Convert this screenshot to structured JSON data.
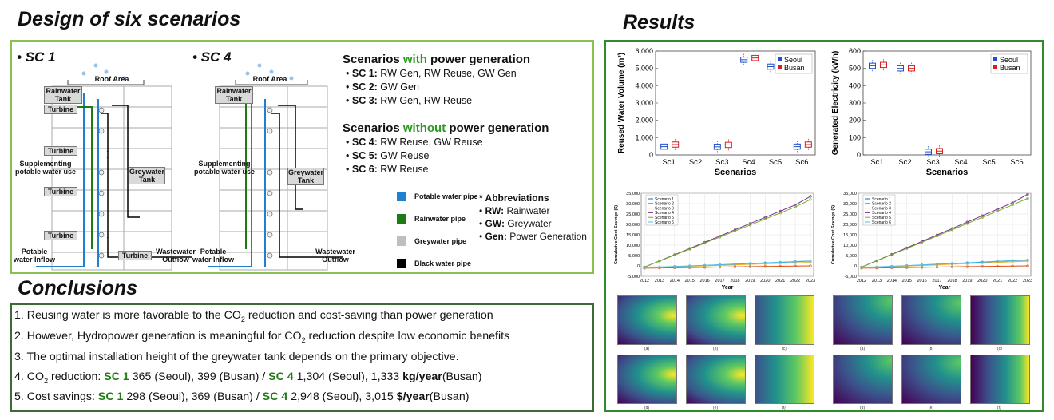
{
  "design": {
    "title": "Design of six scenarios",
    "sc1": {
      "label": "• SC 1",
      "roof": "Roof Area",
      "rain_tank": "Rainwater Tank",
      "turbine": "Turbine",
      "supplementing": "Supplementing potable water use",
      "grey_tank": "Greywater Tank",
      "inflow": "Potable water Inflow",
      "outflow": "Wastewater Outflow"
    },
    "sc4": {
      "label": "• SC 4",
      "roof": "Roof Area",
      "rain_tank": "Rainwater Tank",
      "supplementing": "Supplementing potable water use",
      "grey_tank": "Greywater Tank",
      "inflow": "Potable water Inflow",
      "outflow": "Wastewater Outflow"
    },
    "with_gen": {
      "heading_pre": "Scenarios ",
      "heading_kw": "with",
      "heading_post": " power generation",
      "items": [
        {
          "sc": "SC 1:",
          "text": " RW Gen,  RW Reuse, GW Gen"
        },
        {
          "sc": "SC 2:",
          "text": " GW Gen"
        },
        {
          "sc": "SC 3:",
          "text": " RW Gen,  RW Reuse"
        }
      ]
    },
    "without_gen": {
      "heading_pre": "Scenarios ",
      "heading_kw": "without",
      "heading_post": " power generation",
      "items": [
        {
          "sc": "SC 4:",
          "text": " RW Reuse, GW Reuse"
        },
        {
          "sc": "SC 5:",
          "text": " GW Reuse"
        },
        {
          "sc": "SC 6:",
          "text": " RW Reuse"
        }
      ]
    },
    "pipes": [
      {
        "label": "Potable water pipe",
        "color": "#1f7fd1"
      },
      {
        "label": "Rainwater pipe",
        "color": "#1f7a14"
      },
      {
        "label": "Greywater pipe",
        "color": "#bfbfbf"
      },
      {
        "label": "Black water pipe",
        "color": "#000000"
      }
    ],
    "abbreviations": {
      "title": "* Abbreviations",
      "items": [
        {
          "key": "RW:",
          "val": " Rainwater"
        },
        {
          "key": "GW:",
          "val": " Greywater"
        },
        {
          "key": "Gen:",
          "val": " Power Generation"
        }
      ]
    }
  },
  "conclusions": {
    "title": "Conclusions",
    "l1_a": "1. Reusing water is more favorable to the CO",
    "l1_sub": "2",
    "l1_b": " reduction and cost-saving than power generation",
    "l2_a": "2. However, Hydropower generation is meaningful for CO",
    "l2_sub": "2",
    "l2_b": " reduction despite low economic benefits",
    "l3": "3. The optimal installation height of the greywater tank depends on the primary objective.",
    "l4_a": "4. CO",
    "l4_sub": "2",
    "l4_b": " reduction: ",
    "l4_sc1": "SC 1",
    "l4_c": " 365 (Seoul), 399 (Busan) / ",
    "l4_sc4": "SC 4",
    "l4_d": " 1,304 (Seoul), 1,333 ",
    "l4_unit": "kg/year",
    "l4_e": "(Busan)",
    "l5_a": "5. Cost savings:  ",
    "l5_sc1": "SC 1",
    "l5_c": " 298 (Seoul), 369 (Busan) / ",
    "l5_sc4": "SC 4",
    "l5_d": " 2,948 (Seoul), 3,015 ",
    "l5_unit": "$/year",
    "l5_e": "(Busan)"
  },
  "results": {
    "title": "Results",
    "colors": {
      "seoul": "#1f4fc8",
      "busan": "#d42020",
      "accent": "#2e9a22"
    },
    "legend": {
      "seoul": "Seoul",
      "busan": "Busan"
    },
    "xlabel_scen": "Scenarios",
    "xlabel_year": "Year",
    "ylabel_cost": "Cumulative Cost Savings ($)",
    "cost_series": [
      {
        "name": "Scenario 1",
        "color": "#0072bd"
      },
      {
        "name": "Scenario 2",
        "color": "#d95319"
      },
      {
        "name": "Scenario 3",
        "color": "#edb120"
      },
      {
        "name": "Scenario 4",
        "color": "#7e2f8e"
      },
      {
        "name": "Scenario 5",
        "color": "#77ac30"
      },
      {
        "name": "Scenario 6",
        "color": "#4dbeee"
      }
    ]
  },
  "chart_data": [
    {
      "type": "box",
      "ylabel": "Reused Water Volume (m³)",
      "xlabel": "Scenarios",
      "categories": [
        "Sc1",
        "Sc2",
        "Sc3",
        "Sc4",
        "Sc5",
        "Sc6"
      ],
      "yticks": [
        "0",
        "1,000",
        "2,000",
        "3,000",
        "4,000",
        "5,000",
        "6,000"
      ],
      "ylim": [
        0,
        6000
      ],
      "series": [
        {
          "name": "Seoul",
          "values": [
            480,
            null,
            470,
            5500,
            5100,
            480
          ]
        },
        {
          "name": "Busan",
          "values": [
            600,
            null,
            580,
            5600,
            5100,
            600
          ]
        }
      ],
      "legend": "top-right"
    },
    {
      "type": "box",
      "ylabel": "Generated Electricity (kWh)",
      "xlabel": "Scenarios",
      "categories": [
        "Sc1",
        "Sc2",
        "Sc3",
        "Sc4",
        "Sc5",
        "Sc6"
      ],
      "yticks": [
        "0",
        "100",
        "200",
        "300",
        "400",
        "500",
        "600"
      ],
      "ylim": [
        0,
        600
      ],
      "series": [
        {
          "name": "Seoul",
          "values": [
            515,
            500,
            18,
            null,
            null,
            null
          ]
        },
        {
          "name": "Busan",
          "values": [
            520,
            500,
            22,
            null,
            null,
            null
          ]
        }
      ],
      "legend": "top-right"
    },
    {
      "type": "line",
      "xlabel": "Year",
      "ylabel": "Cumulative Cost Savings ($)",
      "x": [
        "2012",
        "2013",
        "2014",
        "2015",
        "2016",
        "2017",
        "2018",
        "2019",
        "2020",
        "2021",
        "2022",
        "2023"
      ],
      "yticks": [
        "-5,000",
        "0",
        "5,000",
        "10,000",
        "15,000",
        "20,000",
        "25,000",
        "30,000",
        "35,000"
      ],
      "ylim": [
        -5000,
        35000
      ],
      "series": [
        {
          "name": "Scenario 1",
          "values": [
            -1000,
            -700,
            -400,
            -100,
            200,
            500,
            800,
            1100,
            1400,
            1700,
            2000,
            2300
          ]
        },
        {
          "name": "Scenario 2",
          "values": [
            -1100,
            -1000,
            -900,
            -800,
            -700,
            -600,
            -500,
            -400,
            -300,
            -200,
            -100,
            0
          ]
        },
        {
          "name": "Scenario 3",
          "values": [
            -1000,
            -750,
            -500,
            -250,
            0,
            250,
            500,
            750,
            1000,
            1250,
            1500,
            1700
          ]
        },
        {
          "name": "Scenario 4",
          "values": [
            -600,
            2400,
            5400,
            8400,
            11400,
            14400,
            17400,
            20400,
            23400,
            26400,
            29400,
            33500
          ]
        },
        {
          "name": "Scenario 5",
          "values": [
            -600,
            2300,
            5200,
            8100,
            11000,
            13900,
            16800,
            19700,
            22600,
            25500,
            28400,
            32000
          ]
        },
        {
          "name": "Scenario 6",
          "values": [
            -900,
            -600,
            -300,
            0,
            300,
            600,
            900,
            1200,
            1500,
            1800,
            2100,
            2400
          ]
        }
      ]
    },
    {
      "type": "line",
      "xlabel": "Year",
      "ylabel": "Cumulative Cost Savings ($)",
      "x": [
        "2012",
        "2013",
        "2014",
        "2015",
        "2016",
        "2017",
        "2018",
        "2019",
        "2020",
        "2021",
        "2022",
        "2023"
      ],
      "yticks": [
        "-5,000",
        "0",
        "5,000",
        "10,000",
        "15,000",
        "20,000",
        "25,000",
        "30,000",
        "35,000"
      ],
      "ylim": [
        -5000,
        35000
      ],
      "series": [
        {
          "name": "Scenario 1",
          "values": [
            -1000,
            -650,
            -300,
            50,
            400,
            750,
            1100,
            1450,
            1800,
            2150,
            2500,
            2800
          ]
        },
        {
          "name": "Scenario 2",
          "values": [
            -1100,
            -1000,
            -900,
            -800,
            -700,
            -600,
            -500,
            -400,
            -300,
            -200,
            -100,
            0
          ]
        },
        {
          "name": "Scenario 3",
          "values": [
            -1000,
            -700,
            -400,
            -100,
            200,
            500,
            800,
            1100,
            1400,
            1700,
            2000,
            2300
          ]
        },
        {
          "name": "Scenario 4",
          "values": [
            -600,
            2500,
            5600,
            8700,
            11800,
            14900,
            18000,
            21100,
            24200,
            27300,
            30400,
            34500
          ]
        },
        {
          "name": "Scenario 5",
          "values": [
            -600,
            2400,
            5400,
            8400,
            11400,
            14400,
            17400,
            20400,
            23400,
            26400,
            29400,
            32500
          ]
        },
        {
          "name": "Scenario 6",
          "values": [
            -900,
            -550,
            -200,
            150,
            500,
            850,
            1200,
            1550,
            1900,
            2250,
            2600,
            2900
          ]
        }
      ]
    }
  ]
}
